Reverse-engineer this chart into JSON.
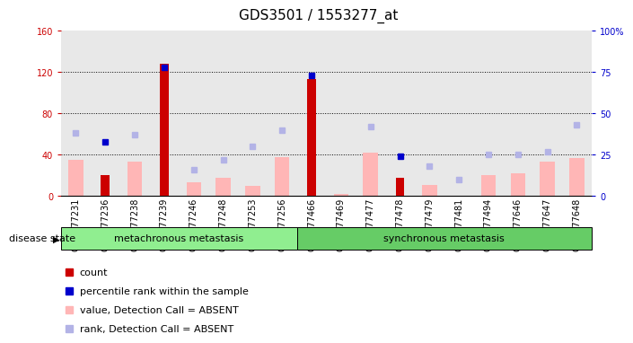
{
  "title": "GDS3501 / 1553277_at",
  "samples": [
    "GSM277231",
    "GSM277236",
    "GSM277238",
    "GSM277239",
    "GSM277246",
    "GSM277248",
    "GSM277253",
    "GSM277256",
    "GSM277466",
    "GSM277469",
    "GSM277477",
    "GSM277478",
    "GSM277479",
    "GSM277481",
    "GSM277494",
    "GSM277646",
    "GSM277647",
    "GSM277648"
  ],
  "meta_count": 8,
  "sync_count": 10,
  "count_values": [
    0,
    20,
    0,
    128,
    0,
    0,
    0,
    0,
    113,
    0,
    0,
    18,
    0,
    0,
    0,
    0,
    0,
    0
  ],
  "percentile_rank_values": [
    null,
    33,
    null,
    78,
    null,
    null,
    null,
    null,
    73,
    null,
    null,
    24,
    null,
    null,
    null,
    null,
    null,
    null
  ],
  "value_absent": [
    35,
    null,
    33,
    null,
    13,
    18,
    10,
    38,
    null,
    2,
    42,
    null,
    11,
    null,
    20,
    22,
    33,
    37
  ],
  "rank_absent": [
    38,
    null,
    37,
    null,
    16,
    22,
    30,
    40,
    null,
    null,
    42,
    null,
    18,
    10,
    25,
    25,
    27,
    43
  ],
  "ylim_left": [
    0,
    160
  ],
  "ylim_right": [
    0,
    100
  ],
  "yticks_left": [
    0,
    40,
    80,
    120,
    160
  ],
  "yticks_right": [
    0,
    25,
    50,
    75,
    100
  ],
  "yticklabels_right": [
    "0",
    "25",
    "50",
    "75",
    "100%"
  ],
  "color_count": "#cc0000",
  "color_percentile": "#0000cc",
  "color_value_absent": "#ffb6b6",
  "color_rank_absent": "#b3b3e6",
  "bg_plot": "#e8e8e8",
  "bg_group": "#90ee90",
  "bg_group2": "#66cc66",
  "left_axis_color": "#cc0000",
  "right_axis_color": "#0000cc",
  "title_fontsize": 11,
  "tick_fontsize": 7,
  "legend_fontsize": 8,
  "group_fontsize": 8
}
